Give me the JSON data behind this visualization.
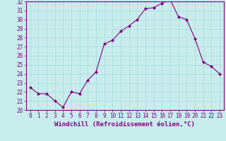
{
  "x": [
    0,
    1,
    2,
    3,
    4,
    5,
    6,
    7,
    8,
    9,
    10,
    11,
    12,
    13,
    14,
    15,
    16,
    17,
    18,
    19,
    20,
    21,
    22,
    23
  ],
  "y": [
    22.5,
    21.8,
    21.8,
    21.0,
    20.3,
    22.0,
    21.8,
    23.3,
    24.2,
    27.3,
    27.7,
    28.7,
    29.3,
    30.0,
    31.2,
    31.3,
    31.8,
    32.2,
    30.3,
    30.0,
    27.9,
    25.3,
    24.8,
    24.0
  ],
  "line_color": "#800080",
  "marker": "D",
  "marker_size": 2,
  "bg_color": "#c8ecec",
  "grid_color": "#aadddd",
  "xlabel": "Windchill (Refroidissement éolien,°C)",
  "ylim": [
    20,
    32
  ],
  "xlim_min": -0.5,
  "xlim_max": 23.5,
  "yticks": [
    20,
    21,
    22,
    23,
    24,
    25,
    26,
    27,
    28,
    29,
    30,
    31,
    32
  ],
  "xticks": [
    0,
    1,
    2,
    3,
    4,
    5,
    6,
    7,
    8,
    9,
    10,
    11,
    12,
    13,
    14,
    15,
    16,
    17,
    18,
    19,
    20,
    21,
    22,
    23
  ],
  "tick_color": "#800080",
  "axis_color": "#800080",
  "tick_fontsize": 5.5,
  "xlabel_fontsize": 6.5
}
